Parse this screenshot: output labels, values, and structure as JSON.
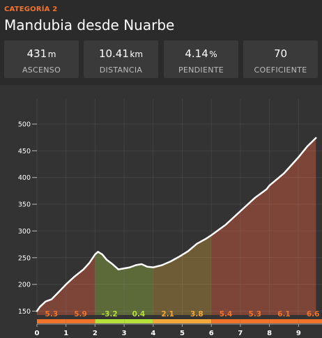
{
  "header": {
    "category": "CATEGORÍA 2",
    "title": "Mandubia desde Nuarbe"
  },
  "stats": [
    {
      "value": "431",
      "unit": "m",
      "label": "ASCENSO"
    },
    {
      "value": "10.41",
      "unit": "km",
      "label": "DISTANCIA"
    },
    {
      "value": "4.14",
      "unit": "%",
      "label": "PENDIENTE"
    },
    {
      "value": "70",
      "unit": "",
      "label": "COEFICIENTE"
    }
  ],
  "colors": {
    "accent": "#f0742c",
    "line": "#ffffff",
    "fill_red": "#7d4537",
    "fill_green": "#5c6a3a",
    "fill_olive": "#6e5c36",
    "bar_red": "#f0742c",
    "bar_green": "#b6e03a",
    "bar_yellow": "#f2a93b"
  },
  "chart_data": {
    "type": "area",
    "xlabel": "",
    "ylabel": "",
    "xlim": [
      0,
      9.6
    ],
    "ylim": [
      140,
      520
    ],
    "x_ticks": [
      "0",
      "1",
      "2",
      "3",
      "4",
      "5",
      "6",
      "7",
      "8",
      "9"
    ],
    "y_ticks": [
      "150",
      "200",
      "250",
      "300",
      "350",
      "400",
      "450",
      "500"
    ],
    "elevation": {
      "x": [
        0,
        0.1,
        0.3,
        0.5,
        0.7,
        1.0,
        1.3,
        1.6,
        1.8,
        2.0,
        2.1,
        2.25,
        2.4,
        2.6,
        2.8,
        3.0,
        3.2,
        3.4,
        3.6,
        3.8,
        4.0,
        4.3,
        4.6,
        4.9,
        5.2,
        5.5,
        5.8,
        6.0,
        6.5,
        7.0,
        7.5,
        7.9,
        8.0,
        8.5,
        9.0,
        9.3,
        9.6
      ],
      "y": [
        150,
        158,
        168,
        172,
        183,
        200,
        215,
        228,
        240,
        256,
        261,
        256,
        246,
        238,
        228,
        230,
        232,
        236,
        238,
        233,
        232,
        236,
        243,
        252,
        262,
        276,
        285,
        292,
        312,
        337,
        362,
        378,
        385,
        408,
        438,
        458,
        474
      ]
    },
    "segments": [
      {
        "km": "0-1",
        "gradient": "5.3"
      },
      {
        "km": "1-2",
        "gradient": "5.9"
      },
      {
        "km": "2-3",
        "gradient": "-3.2"
      },
      {
        "km": "3-4",
        "gradient": "0.4"
      },
      {
        "km": "4-5",
        "gradient": "2.1"
      },
      {
        "km": "5-6",
        "gradient": "3.8"
      },
      {
        "km": "6-7",
        "gradient": "5.4"
      },
      {
        "km": "7-8",
        "gradient": "5.3"
      },
      {
        "km": "8-9",
        "gradient": "6.1"
      },
      {
        "km": "9-10",
        "gradient": "6.6"
      }
    ]
  }
}
